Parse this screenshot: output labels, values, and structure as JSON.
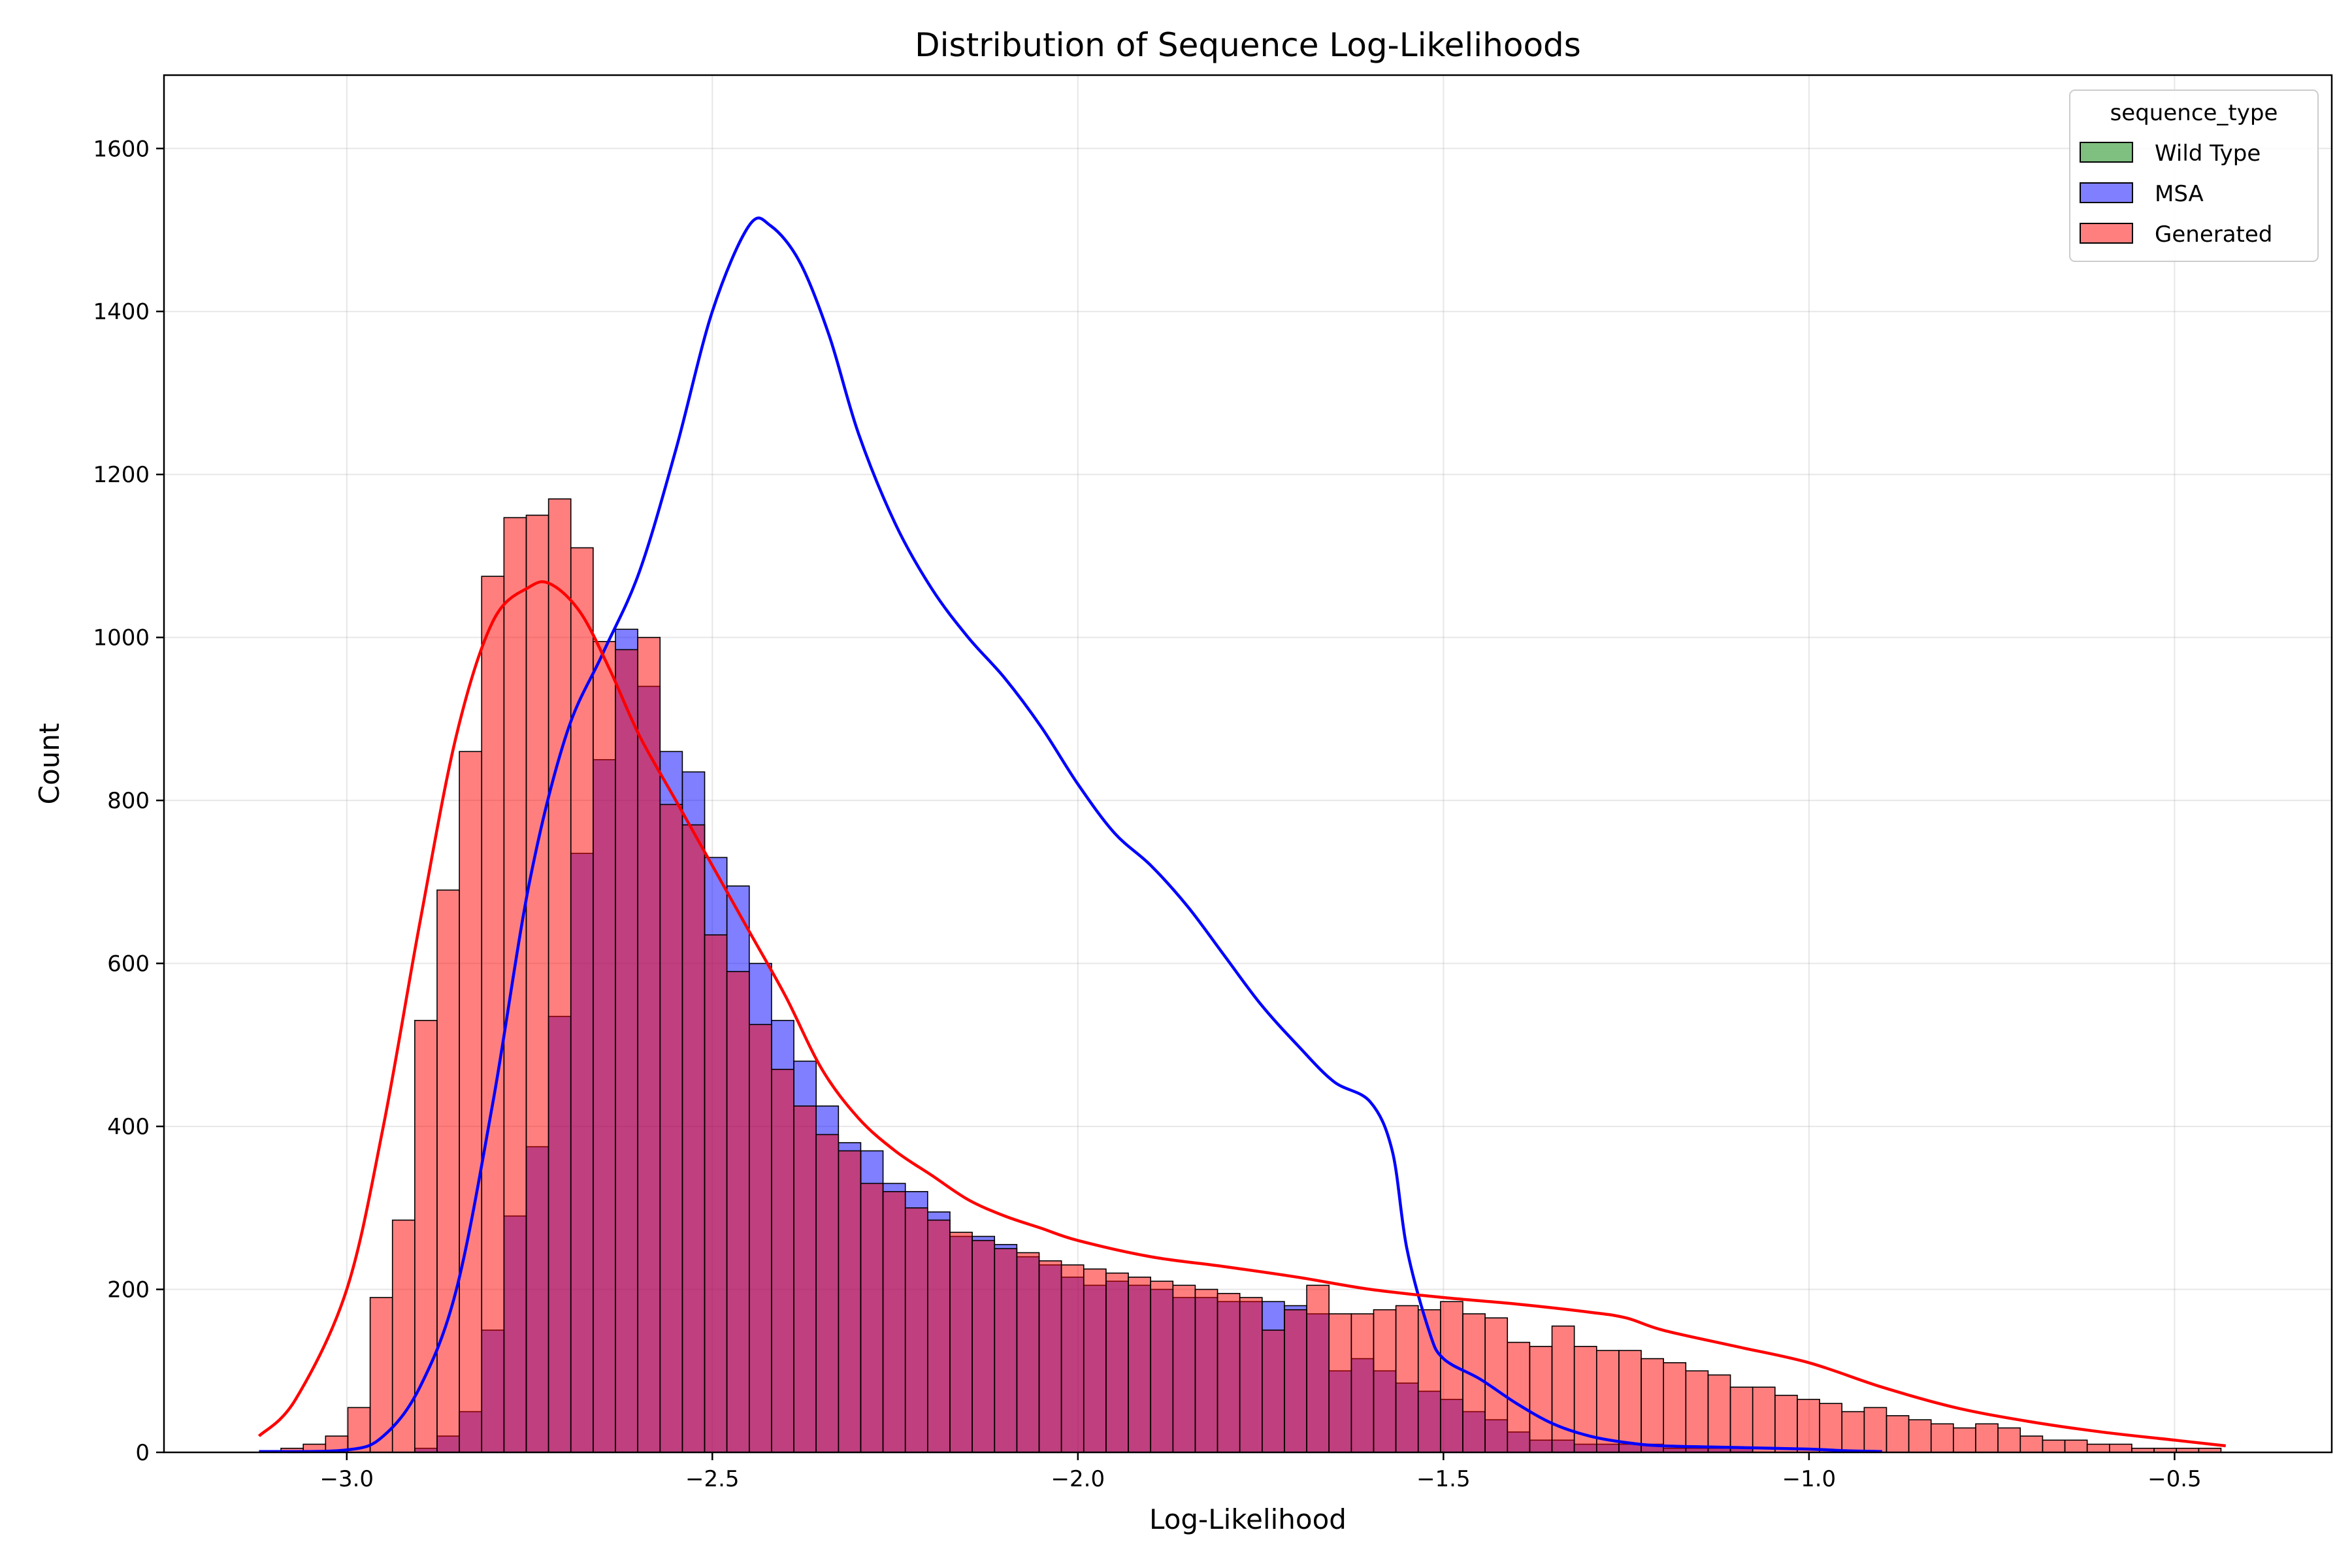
{
  "chart_data": {
    "type": "histogram",
    "title": "Distribution of Sequence Log-Likelihoods",
    "xlabel": "Log-Likelihood",
    "ylabel": "Count",
    "xlim": [
      -3.25,
      -0.285
    ],
    "ylim": [
      0,
      1690
    ],
    "xticks": [
      -3.0,
      -2.5,
      -2.0,
      -1.5,
      -1.0,
      -0.5
    ],
    "xtick_labels": [
      "−3.0",
      "−2.5",
      "−2.0",
      "−1.5",
      "−1.0",
      "−0.5"
    ],
    "yticks": [
      0,
      200,
      400,
      600,
      800,
      1000,
      1200,
      1400,
      1600
    ],
    "ytick_labels": [
      "0",
      "200",
      "400",
      "600",
      "800",
      "1000",
      "1200",
      "1400",
      "1600"
    ],
    "grid": true,
    "legend": {
      "title": "sequence_type",
      "placement": "top-right"
    },
    "bins": {
      "start": -3.09,
      "width": 0.0305,
      "count": 87
    },
    "series": [
      {
        "name": "Wild Type",
        "color": "#008000",
        "values": []
      },
      {
        "name": "MSA",
        "color": "#0000ff",
        "kde_color": "#0000ff",
        "values": [
          0,
          0,
          0,
          0,
          0,
          0,
          5,
          20,
          50,
          150,
          290,
          375,
          535,
          735,
          850,
          1010,
          940,
          860,
          835,
          730,
          695,
          600,
          530,
          480,
          425,
          380,
          370,
          330,
          320,
          295,
          265,
          265,
          255,
          240,
          230,
          215,
          205,
          210,
          205,
          200,
          190,
          190,
          185,
          185,
          185,
          180,
          170,
          100,
          115,
          100,
          85,
          75,
          65,
          50,
          40,
          25,
          15,
          15,
          10,
          10,
          10,
          10,
          5,
          5,
          5,
          5,
          0,
          0,
          0,
          0,
          0,
          0,
          0,
          0,
          0,
          0,
          0,
          0,
          0,
          0,
          0,
          0,
          0,
          0,
          0,
          0,
          0
        ],
        "kde": [
          [
            -3.12,
            1
          ],
          [
            -3.0,
            3
          ],
          [
            -2.95,
            20
          ],
          [
            -2.9,
            80
          ],
          [
            -2.85,
            200
          ],
          [
            -2.8,
            430
          ],
          [
            -2.75,
            700
          ],
          [
            -2.7,
            880
          ],
          [
            -2.65,
            980
          ],
          [
            -2.6,
            1080
          ],
          [
            -2.55,
            1230
          ],
          [
            -2.5,
            1400
          ],
          [
            -2.45,
            1505
          ],
          [
            -2.42,
            1505
          ],
          [
            -2.38,
            1460
          ],
          [
            -2.34,
            1370
          ],
          [
            -2.3,
            1250
          ],
          [
            -2.25,
            1140
          ],
          [
            -2.2,
            1060
          ],
          [
            -2.15,
            1000
          ],
          [
            -2.1,
            950
          ],
          [
            -2.05,
            890
          ],
          [
            -2.0,
            820
          ],
          [
            -1.95,
            760
          ],
          [
            -1.9,
            720
          ],
          [
            -1.85,
            670
          ],
          [
            -1.8,
            610
          ],
          [
            -1.75,
            550
          ],
          [
            -1.7,
            500
          ],
          [
            -1.65,
            455
          ],
          [
            -1.6,
            430
          ],
          [
            -1.57,
            370
          ],
          [
            -1.55,
            250
          ],
          [
            -1.52,
            150
          ],
          [
            -1.5,
            115
          ],
          [
            -1.45,
            90
          ],
          [
            -1.4,
            60
          ],
          [
            -1.35,
            35
          ],
          [
            -1.3,
            20
          ],
          [
            -1.25,
            12
          ],
          [
            -1.2,
            8
          ],
          [
            -1.1,
            6
          ],
          [
            -1.0,
            4
          ],
          [
            -0.95,
            2
          ],
          [
            -0.9,
            1
          ]
        ]
      },
      {
        "name": "Generated",
        "color": "#ff0000",
        "kde_color": "#ff0000",
        "values": [
          5,
          10,
          20,
          55,
          190,
          285,
          530,
          690,
          860,
          1075,
          1147,
          1150,
          1170,
          1110,
          995,
          985,
          1000,
          795,
          770,
          635,
          590,
          525,
          470,
          425,
          390,
          370,
          330,
          320,
          300,
          285,
          270,
          260,
          250,
          245,
          235,
          230,
          225,
          220,
          215,
          210,
          205,
          200,
          195,
          190,
          150,
          175,
          205,
          170,
          170,
          175,
          180,
          175,
          185,
          170,
          165,
          135,
          130,
          155,
          130,
          125,
          125,
          115,
          110,
          100,
          95,
          80,
          80,
          70,
          65,
          60,
          50,
          55,
          45,
          40,
          35,
          30,
          35,
          30,
          20,
          15,
          15,
          10,
          10,
          5,
          5,
          5,
          5
        ],
        "kde": [
          [
            -3.12,
            20
          ],
          [
            -3.07,
            65
          ],
          [
            -3.0,
            200
          ],
          [
            -2.95,
            400
          ],
          [
            -2.9,
            650
          ],
          [
            -2.85,
            880
          ],
          [
            -2.8,
            1020
          ],
          [
            -2.75,
            1062
          ],
          [
            -2.72,
            1065
          ],
          [
            -2.68,
            1030
          ],
          [
            -2.64,
            960
          ],
          [
            -2.6,
            880
          ],
          [
            -2.55,
            800
          ],
          [
            -2.5,
            720
          ],
          [
            -2.45,
            640
          ],
          [
            -2.4,
            560
          ],
          [
            -2.35,
            470
          ],
          [
            -2.3,
            410
          ],
          [
            -2.25,
            370
          ],
          [
            -2.2,
            340
          ],
          [
            -2.15,
            310
          ],
          [
            -2.1,
            290
          ],
          [
            -2.05,
            275
          ],
          [
            -2.0,
            260
          ],
          [
            -1.9,
            240
          ],
          [
            -1.8,
            228
          ],
          [
            -1.7,
            215
          ],
          [
            -1.6,
            200
          ],
          [
            -1.5,
            190
          ],
          [
            -1.4,
            182
          ],
          [
            -1.3,
            172
          ],
          [
            -1.25,
            165
          ],
          [
            -1.2,
            150
          ],
          [
            -1.1,
            130
          ],
          [
            -1.0,
            110
          ],
          [
            -0.9,
            80
          ],
          [
            -0.8,
            55
          ],
          [
            -0.7,
            38
          ],
          [
            -0.6,
            25
          ],
          [
            -0.5,
            15
          ],
          [
            -0.43,
            8
          ]
        ]
      }
    ]
  }
}
